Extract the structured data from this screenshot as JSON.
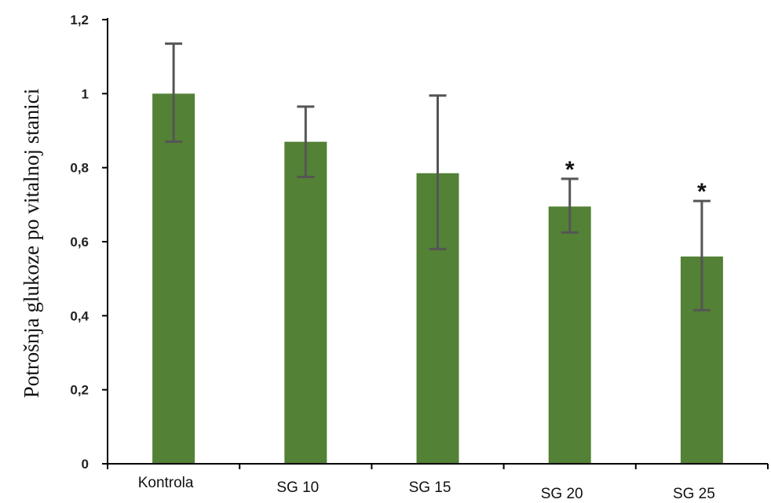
{
  "chart_data": {
    "type": "bar",
    "ylabel": "Potrošnja glukoze po vitalnoj stanici",
    "xlabel": "",
    "ylim": [
      0,
      1.2
    ],
    "yticks": [
      "0",
      "0,2",
      "0,4",
      "0,6",
      "0,8",
      "1",
      "1,2"
    ],
    "yticks_values": [
      0,
      0.2,
      0.4,
      0.6,
      0.8,
      1.0,
      1.2
    ],
    "categories": [
      "Kontrola",
      "SG 10",
      "SG 15",
      "SG 20",
      "SG 25"
    ],
    "values": [
      1.0,
      0.87,
      0.785,
      0.695,
      0.56
    ],
    "error_upper": [
      1.135,
      0.965,
      0.995,
      0.77,
      0.71
    ],
    "error_lower": [
      0.87,
      0.775,
      0.58,
      0.625,
      0.415
    ],
    "significance": [
      "",
      "",
      "",
      "*",
      "*"
    ],
    "bar_color": "#538135",
    "error_color": "#555555",
    "grid": false,
    "legend": "none"
  }
}
